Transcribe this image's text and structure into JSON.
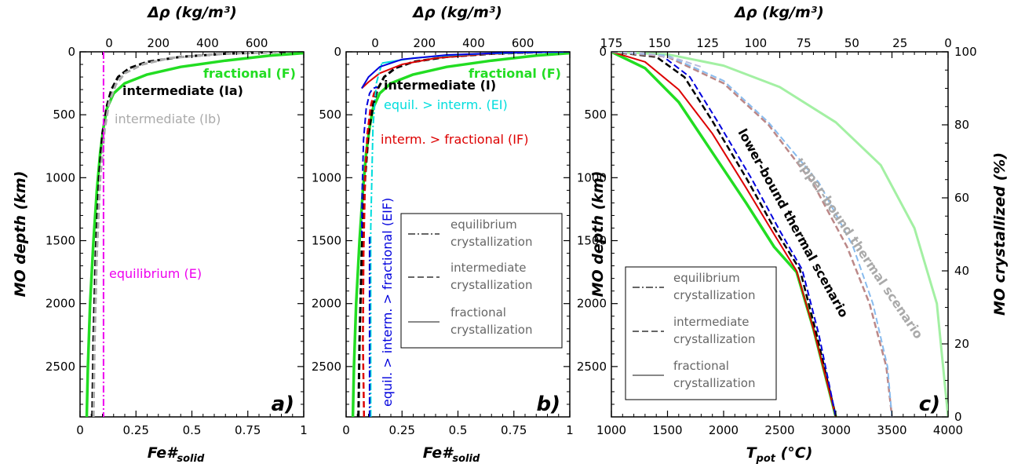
{
  "colors": {
    "fractional": "#22dd22",
    "intermediate": "#000000",
    "intermediate_b": "#aaaaaa",
    "equilibrium": "#ee00ee",
    "ei": "#00dddd",
    "if": "#dd0000",
    "eif": "#0000dd",
    "legend": "#666666",
    "upper_bound": "#99ee99"
  },
  "chart_data": [
    {
      "type": "line",
      "panel_label": "a)",
      "xlabel_main": "Fe#",
      "xlabel_sub": "solid",
      "ylabel": "MO depth (km)",
      "top_xlabel": "Δρ (kg/m³)",
      "xlim": [
        0,
        1
      ],
      "ylim": [
        2900,
        0
      ],
      "xticks": [
        "0",
        "0.25",
        "0.5",
        "0.75",
        "1"
      ],
      "yticks": [
        "0",
        "500",
        "1000",
        "1500",
        "2000",
        "2500"
      ],
      "top_ticks": [
        "0",
        "200",
        "400",
        "600"
      ],
      "top_tick_positions": [
        0.13,
        0.35,
        0.57,
        0.79
      ],
      "series": [
        {
          "name": "fractional (F)",
          "color": "#22dd22",
          "style": "solid",
          "width": 3.5,
          "x": [
            0.03,
            0.035,
            0.045,
            0.06,
            0.075,
            0.09,
            0.105,
            0.12,
            0.15,
            0.2,
            0.3,
            0.45,
            0.65,
            0.85,
            1.0
          ],
          "y": [
            2900,
            2500,
            2000,
            1500,
            1100,
            800,
            600,
            450,
            330,
            250,
            180,
            120,
            70,
            30,
            10
          ]
        },
        {
          "name": "intermediate (Ia)",
          "color": "#000000",
          "style": "dash",
          "width": 3,
          "x": [
            0.055,
            0.06,
            0.07,
            0.085,
            0.1,
            0.12,
            0.14,
            0.17,
            0.22,
            0.3,
            0.45,
            0.65,
            0.85,
            0.92
          ],
          "y": [
            2900,
            2300,
            1600,
            1000,
            650,
            430,
            300,
            200,
            130,
            80,
            40,
            15,
            3,
            0
          ]
        },
        {
          "name": "intermediate (Ib)",
          "color": "#aaaaaa",
          "style": "dash",
          "width": 3,
          "x": [
            0.06,
            0.065,
            0.075,
            0.09,
            0.11,
            0.13,
            0.16,
            0.2,
            0.28,
            0.4,
            0.6,
            0.8,
            0.9
          ],
          "y": [
            2900,
            2300,
            1600,
            1000,
            620,
            400,
            260,
            170,
            100,
            50,
            20,
            5,
            0
          ]
        },
        {
          "name": "equilibrium (E)",
          "color": "#ee00ee",
          "style": "dashdot",
          "width": 2,
          "x": [
            0.105,
            0.105
          ],
          "y": [
            0,
            2900
          ]
        }
      ],
      "annotations": [
        {
          "text": "fractional (F)",
          "color": "#22dd22"
        },
        {
          "text": "intermediate (Ia)",
          "color": "#000000"
        },
        {
          "text": "intermediate (Ib)",
          "color": "#aaaaaa"
        },
        {
          "text": "equilibrium (E)",
          "color": "#ee00ee"
        }
      ]
    },
    {
      "type": "line",
      "panel_label": "b)",
      "xlabel_main": "Fe#",
      "xlabel_sub": "solid",
      "top_xlabel": "Δρ (kg/m³)",
      "xlim": [
        0,
        1
      ],
      "ylim": [
        2900,
        0
      ],
      "xticks": [
        "0",
        "0.25",
        "0.5",
        "0.75",
        "1"
      ],
      "yticks": [
        "0",
        "500",
        "1000",
        "1500",
        "2000",
        "2500"
      ],
      "top_ticks": [
        "0",
        "200",
        "400",
        "600"
      ],
      "top_tick_positions": [
        0.13,
        0.35,
        0.57,
        0.79
      ],
      "series": [
        {
          "name": "fractional (F)",
          "color": "#22dd22",
          "style": "solid",
          "width": 3.5,
          "x": [
            0.03,
            0.035,
            0.045,
            0.06,
            0.075,
            0.09,
            0.105,
            0.12,
            0.15,
            0.2,
            0.3,
            0.45,
            0.65,
            0.85,
            1.0
          ],
          "y": [
            2900,
            2500,
            2000,
            1500,
            1100,
            800,
            600,
            450,
            330,
            250,
            180,
            120,
            70,
            30,
            10
          ]
        },
        {
          "name": "intermediate (I)",
          "color": "#000000",
          "style": "dash",
          "width": 3,
          "x": [
            0.055,
            0.06,
            0.07,
            0.085,
            0.1,
            0.12,
            0.14,
            0.17,
            0.22,
            0.3,
            0.45,
            0.65,
            0.85,
            0.92
          ],
          "y": [
            2900,
            2300,
            1600,
            1000,
            650,
            430,
            300,
            200,
            130,
            80,
            40,
            15,
            3,
            0
          ]
        },
        {
          "name": "interm. > fractional (IF)",
          "color": "#dd0000",
          "style": "solid",
          "width": 2,
          "x": [
            0.07,
            0.1,
            0.15,
            0.25,
            0.4,
            0.6,
            0.8,
            0.9,
            1.0
          ],
          "y": [
            290,
            240,
            170,
            100,
            50,
            20,
            6,
            2,
            0
          ]
        },
        {
          "name": "interm. > fractional (IF)",
          "color": "#dd0000",
          "style": "dash",
          "width": 2.5,
          "x": [
            0.08,
            0.075,
            0.078,
            0.085,
            0.095,
            0.11,
            0.125,
            0.14
          ],
          "y": [
            2900,
            2300,
            1600,
            1000,
            650,
            430,
            330,
            290
          ]
        },
        {
          "name": "equil. > interm. (EI)",
          "color": "#00dddd",
          "style": "solid",
          "width": 2,
          "x": [
            0.16,
            0.3,
            0.45,
            0.6,
            0.8,
            1.0
          ],
          "y": [
            90,
            50,
            30,
            16,
            6,
            0
          ]
        },
        {
          "name": "equil. > interm. (EI)",
          "color": "#00dddd",
          "style": "dashdot",
          "width": 2,
          "x": [
            0.11,
            0.11,
            0.12,
            0.135,
            0.16
          ],
          "y": [
            2900,
            1400,
            600,
            250,
            90
          ]
        },
        {
          "name": "equil. > interm. > fractional (EIF)",
          "color": "#0000dd",
          "style": "solid",
          "width": 2,
          "x": [
            0.07,
            0.1,
            0.15,
            0.25,
            0.45,
            0.7,
            0.9,
            1.0
          ],
          "y": [
            290,
            200,
            120,
            60,
            25,
            8,
            2,
            0
          ]
        },
        {
          "name": "equil. > interm. > fractional (EIF)",
          "color": "#0000dd",
          "style": "dash",
          "width": 2,
          "x": [
            0.07,
            0.072,
            0.078,
            0.09,
            0.105,
            0.12,
            0.14
          ],
          "y": [
            1470,
            1100,
            700,
            450,
            330,
            290,
            280
          ]
        },
        {
          "name": "equil. > interm. > fractional (EIF)",
          "color": "#0000dd",
          "style": "dashdot",
          "width": 2,
          "x": [
            0.105,
            0.105
          ],
          "y": [
            1470,
            2900
          ]
        }
      ],
      "annotations": [
        {
          "text": "fractional (F)",
          "color": "#22dd22"
        },
        {
          "text": "intermediate (I)",
          "color": "#000000"
        },
        {
          "text": "equil. > interm. (EI)",
          "color": "#00dddd"
        },
        {
          "text": "interm. > fractional (IF)",
          "color": "#dd0000"
        },
        {
          "text": "equil. > interm. > fractional (EIF)",
          "color": "#0000dd"
        }
      ],
      "legend": [
        {
          "line1": "equilibrium",
          "line2": "crystallization",
          "style": "dashdot"
        },
        {
          "line1": "intermediate",
          "line2": "crystallization",
          "style": "dash"
        },
        {
          "line1": "fractional",
          "line2": "crystallization",
          "style": "solid"
        }
      ]
    },
    {
      "type": "line",
      "panel_label": "c)",
      "xlabel_main": "T",
      "xlabel_sub": "pot",
      "xlabel_tail": " (°C)",
      "ylabel": "MO depth (km)",
      "ylabel_right": "MO crystallized (%)",
      "top_xlabel": "Δρ (kg/m³)",
      "xlim": [
        1000,
        4000
      ],
      "ylim": [
        2900,
        0
      ],
      "xticks": [
        "1000",
        "1500",
        "2000",
        "2500",
        "3000",
        "3500",
        "4000"
      ],
      "yticks": [
        "0",
        "500",
        "1000",
        "1500",
        "2000",
        "2500"
      ],
      "right_ticks": [
        "0",
        "20",
        "40",
        "60",
        "80",
        "100"
      ],
      "top_ticks": [
        "175",
        "150",
        "125",
        "100",
        "75",
        "50",
        "25",
        "0"
      ],
      "series": [
        {
          "name": "lower-bound thermal scenario (fractional)",
          "color": "#22dd22",
          "style": "solid",
          "width": 3.5,
          "x": [
            1000,
            1300,
            1600,
            1900,
            2200,
            2450,
            2650,
            2800,
            3000
          ],
          "y": [
            0,
            130,
            400,
            800,
            1200,
            1550,
            1750,
            2200,
            2900
          ]
        },
        {
          "name": "lower-bound thermal scenario (intermediate)",
          "color": "#000000",
          "style": "dash",
          "width": 2.5,
          "x": [
            1000,
            1400,
            1650,
            1900,
            2200,
            2450,
            2680,
            2830,
            3000
          ],
          "y": [
            0,
            40,
            200,
            550,
            1000,
            1400,
            1730,
            2250,
            2900
          ]
        },
        {
          "name": "lower-bound thermal scenario (IF)",
          "color": "#dd0000",
          "style": "solid",
          "width": 2,
          "x": [
            1000,
            1300,
            1600,
            1900,
            2200,
            2450,
            2650,
            2800,
            3000
          ],
          "y": [
            0,
            80,
            300,
            650,
            1080,
            1450,
            1740,
            2200,
            2900
          ]
        },
        {
          "name": "lower-bound thermal scenario (EIF)",
          "color": "#0000dd",
          "style": "dash",
          "width": 2,
          "x": [
            1000,
            1450,
            1700,
            1950,
            2250,
            2500,
            2700,
            2850,
            3000
          ],
          "y": [
            0,
            30,
            200,
            560,
            1010,
            1420,
            1730,
            2250,
            2900
          ]
        },
        {
          "name": "upper-bound thermal scenario (fractional)",
          "color": "#99ee99",
          "style": "solid",
          "width": 3,
          "x": [
            1000,
            1500,
            2000,
            2500,
            3000,
            3400,
            3700,
            3900,
            4000
          ],
          "y": [
            0,
            20,
            110,
            280,
            560,
            900,
            1400,
            2000,
            2900
          ]
        },
        {
          "name": "upper-bound thermal scenario (intermediate)",
          "color": "#bb8888",
          "style": "dash",
          "width": 2.5,
          "x": [
            1000,
            1500,
            2000,
            2400,
            2800,
            3100,
            3300,
            3450,
            3500
          ],
          "y": [
            0,
            40,
            250,
            580,
            1050,
            1550,
            2000,
            2500,
            2900
          ]
        },
        {
          "name": "upper-bound thermal scenario (EIF)",
          "color": "#88bbee",
          "style": "dash",
          "width": 2,
          "x": [
            1000,
            1500,
            2000,
            2400,
            2850,
            3150,
            3330,
            3460,
            3500
          ],
          "y": [
            0,
            30,
            230,
            560,
            1040,
            1540,
            2000,
            2500,
            2900
          ]
        },
        {
          "name": "upper-bound thermal scenario (intermediate light)",
          "color": "#bbbbdd",
          "style": "dash",
          "width": 2,
          "x": [
            1000,
            1300,
            1600,
            1800
          ],
          "y": [
            0,
            10,
            60,
            120
          ]
        }
      ],
      "annotations": [
        {
          "text": "lower-bound thermal scenario",
          "color": "#000000"
        },
        {
          "text": "upper-bound thermal scenario",
          "color": "#aaaaaa"
        }
      ],
      "legend": [
        {
          "line1": "equilibrium",
          "line2": "crystallization",
          "style": "dashdot"
        },
        {
          "line1": "intermediate",
          "line2": "crystallization",
          "style": "dash"
        },
        {
          "line1": "fractional",
          "line2": "crystallization",
          "style": "solid"
        }
      ]
    }
  ]
}
